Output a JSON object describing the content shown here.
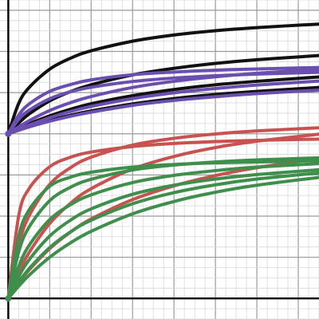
{
  "chart_data": {
    "type": "line",
    "title": "",
    "xlabel": "",
    "ylabel": "",
    "grid": true,
    "xlim": [
      -0.4,
      15.0
    ],
    "ylim": [
      -1.0,
      14.5
    ],
    "minor_step": 0.5,
    "major_step": 2,
    "colors": {
      "black": "#111111",
      "purple": "#6a4fb0",
      "red": "#c85250",
      "green": "#3e8f4c",
      "grid_minor": "#d8d8d8",
      "grid_major": "#9a9a9a",
      "axis": "#000000"
    },
    "series": [
      {
        "color": "black",
        "x": [
          0,
          0.5,
          1,
          2,
          3,
          4,
          6,
          8,
          10,
          12,
          15
        ],
        "y": [
          8,
          9.47,
          10.24,
          11.14,
          11.67,
          12.03,
          12.5,
          12.8,
          13.01,
          13.16,
          13.33
        ]
      },
      {
        "color": "black",
        "x": [
          0,
          0.5,
          1,
          2,
          3,
          4,
          6,
          8,
          10,
          12,
          15
        ],
        "y": [
          8,
          8.52,
          8.96,
          9.6,
          10.05,
          10.38,
          10.86,
          11.18,
          11.42,
          11.6,
          11.8
        ]
      },
      {
        "color": "black",
        "x": [
          0,
          0.5,
          1,
          2,
          3,
          4,
          6,
          8,
          10,
          12,
          15
        ],
        "y": [
          8,
          8.25,
          8.48,
          8.87,
          9.19,
          9.46,
          9.85,
          10.15,
          10.38,
          10.55,
          10.76
        ]
      },
      {
        "color": "black",
        "x": [
          0,
          0.5,
          1,
          2,
          3,
          4,
          6,
          8,
          10,
          12,
          15
        ],
        "y": [
          8,
          8.18,
          8.35,
          8.65,
          8.9,
          9.11,
          9.45,
          9.71,
          9.91,
          10.06,
          10.25
        ]
      },
      {
        "color": "purple",
        "x": [
          0,
          0.5,
          1,
          2,
          3,
          4,
          6,
          8,
          10,
          12,
          15
        ],
        "y": [
          8,
          8.9,
          9.44,
          10.06,
          10.39,
          10.62,
          10.87,
          11.0,
          11.09,
          11.15,
          11.22
        ]
      },
      {
        "color": "purple",
        "x": [
          0,
          0.5,
          1,
          2,
          3,
          4,
          6,
          8,
          10,
          12,
          15
        ],
        "y": [
          8,
          8.7,
          9.14,
          9.7,
          10.04,
          10.26,
          10.54,
          10.71,
          10.82,
          10.9,
          10.99
        ]
      },
      {
        "color": "purple",
        "x": [
          0,
          0.5,
          1,
          2,
          3,
          4,
          6,
          8,
          10,
          12,
          15
        ],
        "y": [
          8,
          8.33,
          8.63,
          9.13,
          9.51,
          9.81,
          10.25,
          10.55,
          10.77,
          10.94,
          11.13
        ]
      },
      {
        "color": "purple",
        "x": [
          0,
          0.5,
          1,
          2,
          3,
          4,
          6,
          8,
          10,
          12,
          15
        ],
        "y": [
          8,
          8.22,
          8.42,
          8.78,
          9.08,
          9.33,
          9.71,
          9.99,
          10.2,
          10.37,
          10.56
        ]
      },
      {
        "color": "purple",
        "x": [
          0,
          0.5,
          1,
          2,
          3,
          4,
          6,
          8,
          10,
          12,
          15
        ],
        "y": [
          8,
          8.17,
          8.33,
          8.61,
          8.85,
          9.05,
          9.38,
          9.62,
          9.8,
          9.95,
          10.12
        ]
      },
      {
        "color": "red",
        "x": [
          0,
          0.5,
          1,
          2,
          3,
          4,
          6,
          8,
          10,
          12,
          15
        ],
        "y": [
          0,
          4.0,
          5.33,
          6.4,
          6.86,
          7.11,
          7.38,
          7.53,
          7.62,
          7.68,
          7.74
        ]
      },
      {
        "color": "red",
        "x": [
          0,
          0.5,
          1,
          2,
          3,
          4,
          6,
          8,
          10,
          12,
          15
        ],
        "y": [
          0,
          2.57,
          4.0,
          5.54,
          6.35,
          6.86,
          7.45,
          7.78,
          7.99,
          8.14,
          8.29
        ]
      },
      {
        "color": "red",
        "x": [
          0,
          0.5,
          1,
          2,
          3,
          4,
          6,
          8,
          10,
          12,
          15
        ],
        "y": [
          0,
          1.25,
          2.22,
          3.64,
          4.62,
          5.33,
          6.29,
          6.9,
          7.33,
          7.64,
          7.98
        ]
      },
      {
        "color": "red",
        "x": [
          0,
          0.5,
          1,
          2,
          3,
          4,
          6,
          8,
          10,
          12,
          15
        ],
        "y": [
          0,
          0.74,
          1.38,
          2.42,
          3.22,
          3.86,
          4.8,
          5.47,
          5.97,
          6.35,
          6.8
        ]
      },
      {
        "color": "green",
        "x": [
          0,
          0.5,
          1,
          2,
          3,
          4,
          6,
          8,
          10,
          12,
          15
        ],
        "y": [
          0,
          3.0,
          4.29,
          5.45,
          5.89,
          6.13,
          6.38,
          6.51,
          6.59,
          6.63,
          6.69
        ]
      },
      {
        "color": "green",
        "x": [
          0,
          0.5,
          1,
          2,
          3,
          4,
          6,
          8,
          10,
          12,
          15
        ],
        "y": [
          0,
          2.25,
          3.46,
          4.75,
          5.4,
          5.79,
          6.24,
          6.48,
          6.63,
          6.73,
          6.83
        ]
      },
      {
        "color": "green",
        "x": [
          0,
          0.5,
          1,
          2,
          3,
          4,
          6,
          8,
          10,
          12,
          15
        ],
        "y": [
          0,
          1.54,
          2.57,
          3.83,
          4.55,
          5.03,
          5.63,
          5.98,
          6.21,
          6.38,
          6.55
        ]
      },
      {
        "color": "green",
        "x": [
          0,
          0.5,
          1,
          2,
          3,
          4,
          6,
          8,
          10,
          12,
          15
        ],
        "y": [
          0,
          1.05,
          1.87,
          3.03,
          3.8,
          4.35,
          5.06,
          5.5,
          5.8,
          6.02,
          6.25
        ]
      },
      {
        "color": "green",
        "x": [
          0,
          0.5,
          1,
          2,
          3,
          4,
          6,
          8,
          10,
          12,
          15
        ],
        "y": [
          0,
          0.78,
          1.44,
          2.47,
          3.23,
          3.8,
          4.6,
          5.14,
          5.52,
          5.8,
          6.1
        ]
      },
      {
        "color": "green",
        "x": [
          0,
          0.5,
          1,
          2,
          3,
          4,
          6,
          8,
          10,
          12,
          15
        ],
        "y": [
          0,
          0.59,
          1.12,
          2.0,
          2.7,
          3.26,
          4.11,
          4.71,
          5.16,
          5.5,
          5.88
        ]
      }
    ],
    "points": [
      {
        "x": 0,
        "y": 8,
        "color": "purple"
      },
      {
        "x": 0,
        "y": 0,
        "color": "green"
      }
    ]
  }
}
